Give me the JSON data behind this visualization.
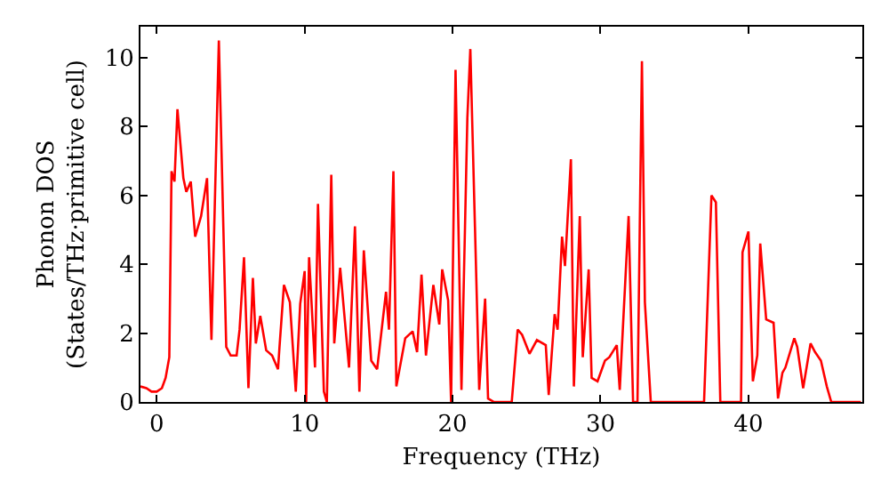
{
  "chart_data": {
    "type": "line",
    "xlabel": "Frequency (THz)",
    "ylabel": "Phonon DOS\n(States/THz·primitive cell)",
    "xlim": [
      -1.1,
      47.7
    ],
    "ylim": [
      0,
      10.9
    ],
    "xticks": [
      0,
      10,
      20,
      30,
      40
    ],
    "yticks": [
      0,
      2,
      4,
      6,
      8,
      10
    ],
    "marker": "none",
    "line_style": "solid",
    "series": [
      {
        "color": "#ff0000",
        "x": [
          -1.1,
          -0.7,
          -0.35,
          0,
          0.35,
          0.6,
          0.85,
          1.0,
          1.2,
          1.4,
          1.8,
          2.0,
          2.3,
          2.6,
          3.0,
          3.4,
          3.7,
          4.2,
          4.7,
          5.0,
          5.4,
          5.6,
          5.9,
          6.2,
          6.5,
          6.7,
          7.0,
          7.4,
          7.8,
          8.2,
          8.3,
          8.6,
          9.0,
          9.4,
          9.7,
          10.0,
          10.1,
          10.3,
          10.7,
          10.9,
          11.3,
          11.5,
          11.8,
          12.0,
          12.4,
          13.0,
          13.4,
          13.7,
          14.0,
          14.5,
          14.9,
          15.5,
          15.7,
          16.0,
          16.2,
          16.8,
          17.3,
          17.6,
          17.9,
          18.2,
          18.7,
          19.1,
          19.3,
          19.7,
          19.9,
          20.2,
          20.6,
          21.0,
          21.2,
          21.8,
          22.2,
          22.4,
          22.8,
          24.0,
          24.4,
          24.7,
          25.2,
          25.7,
          26.3,
          26.5,
          26.9,
          27.1,
          27.4,
          27.6,
          28.0,
          28.2,
          28.6,
          28.8,
          29.2,
          29.4,
          29.8,
          30.3,
          30.6,
          31.1,
          31.3,
          31.9,
          32.2,
          32.5,
          32.8,
          33.0,
          33.4,
          37.0,
          37.5,
          37.8,
          38.1,
          39.5,
          39.6,
          40.0,
          40.3,
          40.6,
          40.8,
          41.2,
          41.7,
          42.0,
          42.3,
          42.5,
          43.1,
          43.3,
          43.7,
          44.2,
          44.5,
          44.9,
          45.3,
          45.6,
          47.6
        ],
        "values": [
          0.45,
          0.4,
          0.3,
          0.3,
          0.4,
          0.7,
          1.3,
          6.7,
          6.4,
          8.5,
          6.5,
          6.1,
          6.4,
          4.8,
          5.4,
          6.5,
          1.8,
          10.5,
          1.6,
          1.35,
          1.35,
          2.1,
          4.2,
          0.4,
          3.6,
          1.7,
          2.5,
          1.5,
          1.35,
          0.95,
          1.6,
          3.4,
          2.9,
          0.3,
          2.85,
          3.8,
          0,
          4.2,
          1.0,
          5.75,
          0.3,
          0,
          6.6,
          1.7,
          3.9,
          1.0,
          5.1,
          0.3,
          4.4,
          1.2,
          0.95,
          3.2,
          2.1,
          6.7,
          0.45,
          1.85,
          2.05,
          1.45,
          3.7,
          1.35,
          3.4,
          2.25,
          3.85,
          2.95,
          0,
          9.65,
          0.35,
          8.25,
          10.25,
          0.35,
          3.0,
          0.1,
          0,
          0,
          2.1,
          1.95,
          1.4,
          1.8,
          1.65,
          0.2,
          2.55,
          2.1,
          4.8,
          3.95,
          7.05,
          0.45,
          5.4,
          1.3,
          3.85,
          0.7,
          0.6,
          1.2,
          1.3,
          1.65,
          0.35,
          5.4,
          0,
          0,
          9.9,
          2.9,
          0,
          0,
          6.0,
          5.8,
          0,
          0,
          4.35,
          4.95,
          0.6,
          1.35,
          4.6,
          2.4,
          2.3,
          0.1,
          0.85,
          1.0,
          1.85,
          1.6,
          0.4,
          1.7,
          1.45,
          1.2,
          0.45,
          0,
          0
        ]
      }
    ]
  }
}
